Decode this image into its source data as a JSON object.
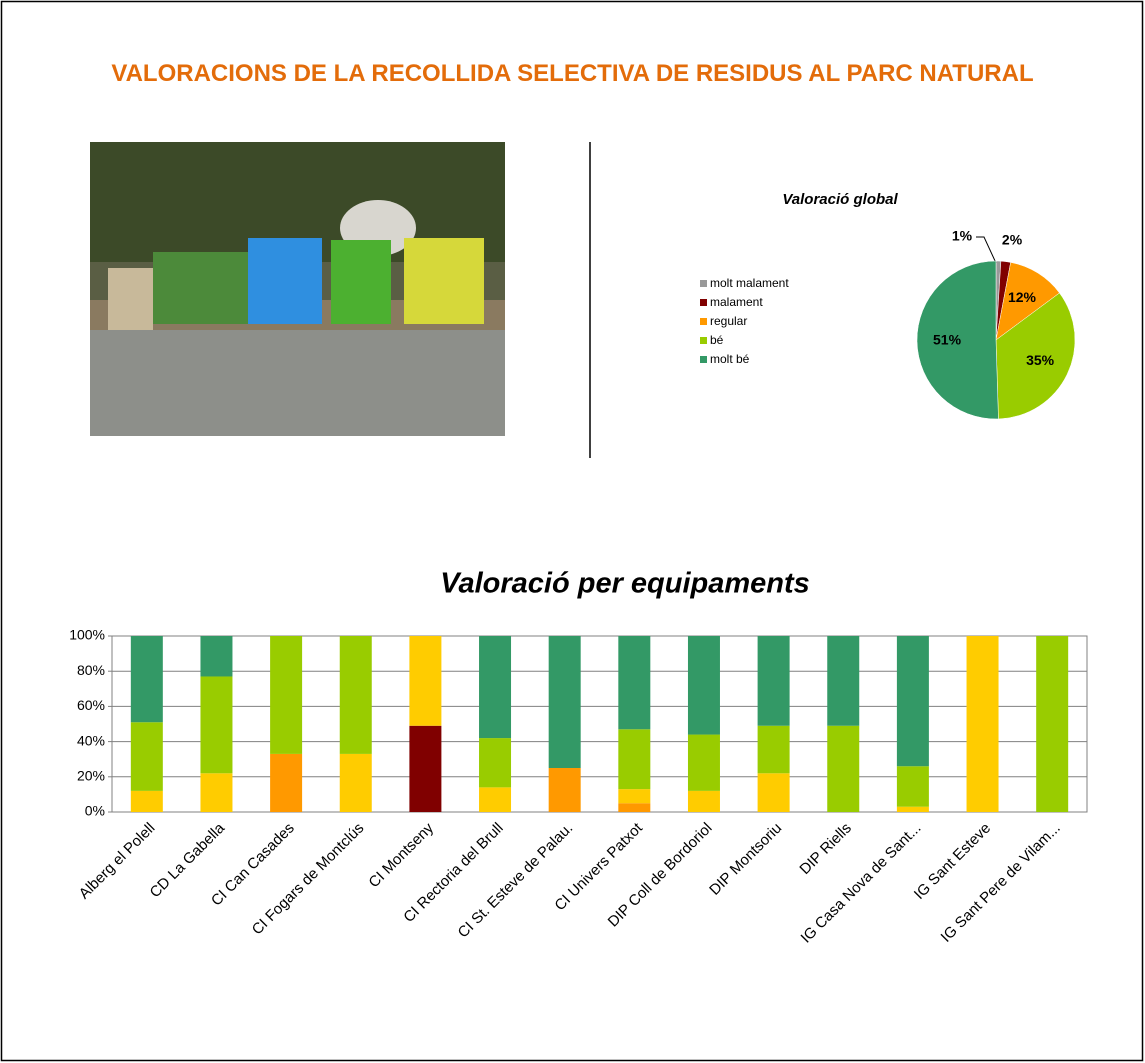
{
  "title": "VALORACIONS DE LA RECOLLIDA SELECTIVA DE RESIDUS AL PARC NATURAL",
  "chart_data": [
    {
      "type": "pie",
      "title": "Valoració global",
      "categories": [
        "molt malament",
        "malament",
        "regular",
        "bé",
        "molt bé"
      ],
      "values": [
        1,
        2,
        12,
        35,
        51
      ],
      "value_labels": [
        "1%",
        "2%",
        "12%",
        "35%",
        "51%"
      ],
      "colors": [
        "#999999",
        "#800000",
        "#ff9900",
        "#99cc00",
        "#339966"
      ]
    },
    {
      "type": "stacked_bar",
      "title": "Valoració  per equipaments",
      "categories": [
        "Alberg el Polell",
        "CD La Gabella",
        "CI Can Casades",
        "CI Fogars de Montclús",
        "CI Montseny",
        "CI Rectoria del Brull",
        "CI St. Esteve de Palau.",
        "CI Univers Patxot",
        "DIP Coll de Bordoriol",
        "DIP Montsoriu",
        "DIP Riells",
        "IG Casa Nova de Sant...",
        "IG Sant Esteve",
        "IG Sant Pere de Vilam..."
      ],
      "series": [
        {
          "color": "#800000",
          "values": [
            0,
            0,
            0,
            0,
            49,
            0,
            0,
            0,
            0,
            0,
            0,
            0,
            0,
            0
          ]
        },
        {
          "color": "#ff9900",
          "values": [
            0,
            0,
            33,
            0,
            0,
            0,
            25,
            5,
            0,
            0,
            0,
            0,
            0,
            0
          ]
        },
        {
          "color": "#ffcc00",
          "values": [
            12,
            22,
            0,
            33,
            51,
            14,
            0,
            8,
            12,
            22,
            0,
            3,
            100,
            0
          ]
        },
        {
          "color": "#99cc00",
          "values": [
            39,
            55,
            67,
            67,
            0,
            28,
            0,
            34,
            32,
            27,
            49,
            23,
            0,
            100
          ]
        },
        {
          "color": "#339966",
          "values": [
            49,
            23,
            0,
            0,
            0,
            58,
            75,
            53,
            56,
            51,
            51,
            74,
            0,
            0
          ]
        }
      ],
      "ylim": [
        0,
        100
      ],
      "yticks": [
        {
          "value": 0,
          "label": "0%"
        },
        {
          "value": 20,
          "label": "20%"
        },
        {
          "value": 40,
          "label": "40%"
        },
        {
          "value": 60,
          "label": "60%"
        },
        {
          "value": 80,
          "label": "80%"
        },
        {
          "value": 100,
          "label": "100%"
        }
      ],
      "grid": true
    }
  ]
}
